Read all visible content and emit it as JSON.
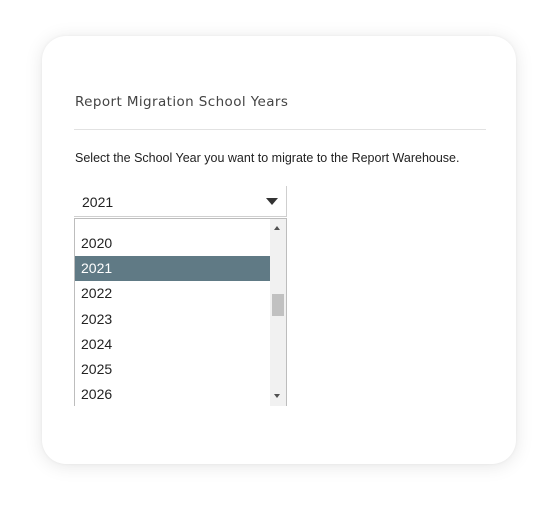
{
  "dialog": {
    "title": "Report Migration School Years",
    "instruction": "Select the School Year you want to migrate to the Report Warehouse."
  },
  "school_year_select": {
    "selected_value": "2021",
    "options": [
      "2020",
      "2021",
      "2022",
      "2023",
      "2024",
      "2025",
      "2026"
    ],
    "selected_index": 1
  },
  "icons": {
    "dropdown_toggle": "caret-down-icon",
    "scroll_up": "scroll-up-arrow-icon",
    "scroll_down": "scroll-down-arrow-icon"
  },
  "colors": {
    "selected_option_bg": "#607a85",
    "selected_option_text": "#ffffff"
  }
}
